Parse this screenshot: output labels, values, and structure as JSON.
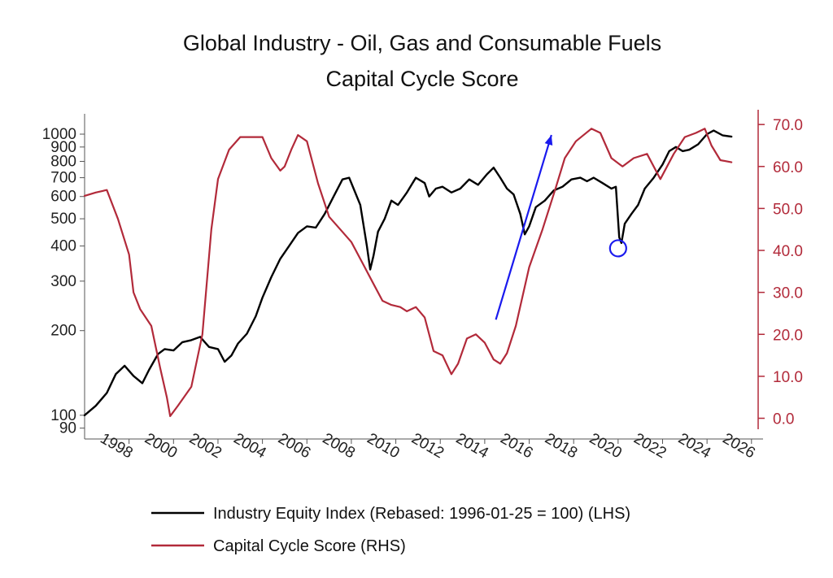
{
  "chart_data": {
    "type": "line",
    "title": "Global Industry - Oil, Gas and Consumable Fuels",
    "subtitle": "Capital Cycle Score",
    "colors": {
      "index": "#000000",
      "score": "#b22a3a",
      "annotation": "#1a1aee"
    },
    "left_axis": {
      "scale": "log",
      "ylim": [
        88,
        1120
      ],
      "ticks": [
        90,
        100,
        200,
        300,
        400,
        500,
        600,
        700,
        800,
        900,
        1000
      ],
      "tick_labels": [
        "90",
        "100",
        "200",
        "300",
        "400",
        "500",
        "600",
        "700",
        "800",
        "900",
        "1000"
      ]
    },
    "right_axis": {
      "scale": "linear",
      "ylim": [
        -3,
        71
      ],
      "ticks": [
        0,
        10,
        20,
        30,
        40,
        50,
        60,
        70
      ],
      "tick_labels": [
        "0.0",
        "10.0",
        "20.0",
        "30.0",
        "40.0",
        "50.0",
        "60.0",
        "70.0"
      ]
    },
    "x_axis": {
      "xlim": [
        1996.0,
        2026.3
      ],
      "ticks": [
        1998,
        2000,
        2002,
        2004,
        2006,
        2008,
        2010,
        2012,
        2014,
        2016,
        2018,
        2020,
        2022,
        2024,
        2026
      ],
      "tick_labels": [
        "1998",
        "2000",
        "2002",
        "2004",
        "2006",
        "2008",
        "2010",
        "2012",
        "2014",
        "2016",
        "2018",
        "2020",
        "2022",
        "2024",
        "2026"
      ]
    },
    "grid": false,
    "legend_position": "bottom",
    "series": [
      {
        "name": "Industry Equity Index (Rebased: 1996-01-25 = 100) (LHS)",
        "axis": "left",
        "x": [
          1996.0,
          1996.5,
          1997.0,
          1997.4,
          1997.8,
          1998.2,
          1998.6,
          1998.9,
          1999.3,
          1999.6,
          2000.0,
          2000.4,
          2000.8,
          2001.2,
          2001.6,
          2002.0,
          2002.3,
          2002.6,
          2002.9,
          2003.3,
          2003.7,
          2004.0,
          2004.4,
          2004.8,
          2005.2,
          2005.6,
          2006.0,
          2006.4,
          2006.8,
          2007.2,
          2007.6,
          2007.9,
          2008.1,
          2008.4,
          2008.7,
          2008.85,
          2009.0,
          2009.2,
          2009.5,
          2009.8,
          2010.1,
          2010.5,
          2010.9,
          2011.3,
          2011.5,
          2011.8,
          2012.1,
          2012.5,
          2012.9,
          2013.3,
          2013.7,
          2014.1,
          2014.4,
          2014.7,
          2015.0,
          2015.3,
          2015.6,
          2015.8,
          2016.0,
          2016.3,
          2016.7,
          2017.1,
          2017.5,
          2017.9,
          2018.3,
          2018.6,
          2018.9,
          2019.3,
          2019.7,
          2019.9,
          2020.05,
          2020.15,
          2020.3,
          2020.6,
          2020.9,
          2021.2,
          2021.6,
          2022.0,
          2022.3,
          2022.6,
          2022.9,
          2023.2,
          2023.6,
          2024.0,
          2024.3,
          2024.7,
          2025.1
        ],
        "values": [
          100,
          108,
          120,
          140,
          150,
          138,
          130,
          145,
          165,
          172,
          170,
          182,
          185,
          190,
          175,
          172,
          155,
          163,
          180,
          195,
          225,
          262,
          310,
          360,
          400,
          445,
          470,
          465,
          520,
          600,
          690,
          700,
          640,
          560,
          400,
          330,
          370,
          450,
          500,
          580,
          560,
          620,
          700,
          670,
          600,
          640,
          650,
          620,
          640,
          690,
          660,
          720,
          760,
          700,
          640,
          610,
          520,
          440,
          470,
          550,
          580,
          630,
          650,
          690,
          700,
          680,
          700,
          670,
          640,
          650,
          430,
          410,
          480,
          520,
          560,
          640,
          700,
          780,
          870,
          900,
          870,
          880,
          920,
          1000,
          1030,
          990,
          980
        ]
      },
      {
        "name": "Capital Cycle Score (RHS)",
        "axis": "right",
        "x": [
          1996.0,
          1996.5,
          1997.0,
          1997.5,
          1998.0,
          1998.2,
          1998.5,
          1999.0,
          1999.4,
          1999.7,
          1999.85,
          2000.2,
          2000.8,
          2001.3,
          2001.7,
          2002.0,
          2002.5,
          2003.0,
          2003.5,
          2004.0,
          2004.4,
          2004.8,
          2005.0,
          2005.3,
          2005.6,
          2006.0,
          2006.5,
          2007.0,
          2007.5,
          2008.0,
          2008.5,
          2009.0,
          2009.4,
          2009.8,
          2010.2,
          2010.5,
          2010.9,
          2011.3,
          2011.7,
          2012.1,
          2012.5,
          2012.8,
          2013.2,
          2013.6,
          2014.0,
          2014.4,
          2014.7,
          2015.0,
          2015.4,
          2016.0,
          2016.6,
          2017.2,
          2017.6,
          2018.1,
          2018.8,
          2019.2,
          2019.7,
          2020.2,
          2020.7,
          2021.3,
          2021.9,
          2022.5,
          2023.0,
          2023.5,
          2023.9,
          2024.2,
          2024.6,
          2025.1
        ],
        "values": [
          53.0,
          53.8,
          54.4,
          47.5,
          39.0,
          30.0,
          26.0,
          22.0,
          12.0,
          5.0,
          0.5,
          3.0,
          7.5,
          20.0,
          45.0,
          57.0,
          64.0,
          67.0,
          67.0,
          67.0,
          62.0,
          59.0,
          60.0,
          64.0,
          67.5,
          66.0,
          56.0,
          48.0,
          45.0,
          42.0,
          37.0,
          32.0,
          28.0,
          27.0,
          26.5,
          25.5,
          26.5,
          24.0,
          16.0,
          15.0,
          10.5,
          13.0,
          19.0,
          20.0,
          18.0,
          14.0,
          13.0,
          15.5,
          22.0,
          36.0,
          45.0,
          55.0,
          62.0,
          66.0,
          69.0,
          68.0,
          62.0,
          60.0,
          62.0,
          63.0,
          57.0,
          63.0,
          67.0,
          68.0,
          69.0,
          65.0,
          61.5,
          61.0
        ]
      }
    ],
    "annotations": [
      {
        "type": "arrow",
        "from": [
          2014.5,
          23.5
        ],
        "to": [
          2017.0,
          67.5
        ],
        "axis": "right"
      },
      {
        "type": "circle",
        "at": [
          2020.0,
          40.5
        ],
        "axis": "right"
      }
    ]
  }
}
